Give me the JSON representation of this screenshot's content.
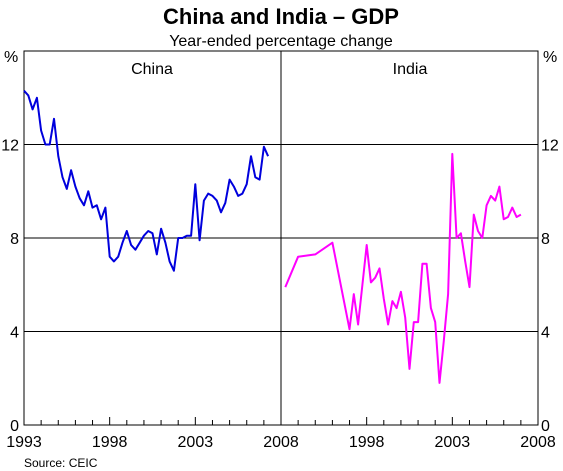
{
  "chart_data": {
    "type": "line",
    "title": "China and India – GDP",
    "subtitle": "Year-ended percentage change",
    "source": "Source: CEIC",
    "unit_left": "%",
    "unit_right": "%",
    "ylim": [
      0,
      16
    ],
    "yticks": [
      0,
      4,
      8,
      12
    ],
    "grid": true,
    "panels": [
      {
        "title": "China",
        "xlim": [
          1993,
          2008
        ],
        "xtick_labels": [
          "1993",
          "1998",
          "2003",
          "2008"
        ],
        "series": [
          {
            "color": "#0000dd",
            "x": [
              1993.0,
              1993.25,
              1993.5,
              1993.75,
              1994.0,
              1994.25,
              1994.5,
              1994.75,
              1995.0,
              1995.25,
              1995.5,
              1995.75,
              1996.0,
              1996.25,
              1996.5,
              1996.75,
              1997.0,
              1997.25,
              1997.5,
              1997.75,
              1998.0,
              1998.25,
              1998.5,
              1998.75,
              1999.0,
              1999.25,
              1999.5,
              1999.75,
              2000.0,
              2000.25,
              2000.5,
              2000.75,
              2001.0,
              2001.25,
              2001.5,
              2001.75,
              2002.0,
              2002.25,
              2002.5,
              2002.75,
              2003.0,
              2003.25,
              2003.5,
              2003.75,
              2004.0,
              2004.25,
              2004.5,
              2004.75,
              2005.0,
              2005.25,
              2005.5,
              2005.75,
              2006.0,
              2006.25,
              2006.5,
              2006.75,
              2007.0,
              2007.25
            ],
            "y": [
              14.3,
              14.1,
              13.5,
              14.0,
              12.6,
              12.0,
              12.0,
              13.1,
              11.5,
              10.6,
              10.1,
              10.9,
              10.2,
              9.7,
              9.4,
              10.0,
              9.3,
              9.4,
              8.8,
              9.3,
              7.2,
              7.0,
              7.2,
              7.8,
              8.3,
              7.7,
              7.5,
              7.8,
              8.1,
              8.3,
              8.2,
              7.3,
              8.4,
              7.8,
              7.0,
              6.6,
              8.0,
              8.0,
              8.1,
              8.1,
              10.3,
              7.9,
              9.6,
              9.9,
              9.8,
              9.6,
              9.1,
              9.5,
              10.5,
              10.2,
              9.8,
              9.9,
              10.3,
              11.5,
              10.6,
              10.5,
              11.9,
              11.5
            ]
          }
        ]
      },
      {
        "title": "India",
        "xlim": [
          1993,
          2008
        ],
        "xtick_labels": [
          "1998",
          "2003",
          "2008"
        ],
        "series": [
          {
            "color": "#ff00ff",
            "x": [
              1993.25,
              1994.0,
              1995.0,
              1996.0,
              1997.0,
              1997.25,
              1997.5,
              1997.75,
              1998.0,
              1998.25,
              1998.5,
              1998.75,
              1999.0,
              1999.25,
              1999.5,
              1999.75,
              2000.0,
              2000.25,
              2000.5,
              2000.75,
              2001.0,
              2001.25,
              2001.5,
              2001.75,
              2002.0,
              2002.25,
              2002.5,
              2002.75,
              2003.0,
              2003.25,
              2003.5,
              2003.75,
              2004.0,
              2004.25,
              2004.5,
              2004.75,
              2005.0,
              2005.25,
              2005.5,
              2005.75,
              2006.0,
              2006.25,
              2006.5,
              2006.75,
              2007.0
            ],
            "y": [
              5.9,
              7.2,
              7.3,
              7.8,
              4.1,
              5.6,
              4.3,
              6.0,
              7.7,
              6.1,
              6.3,
              6.7,
              5.4,
              4.3,
              5.3,
              5.0,
              5.7,
              4.6,
              2.4,
              4.4,
              4.4,
              6.9,
              6.9,
              5.0,
              4.4,
              1.8,
              3.6,
              5.6,
              11.6,
              8.0,
              8.2,
              7.0,
              5.9,
              9.0,
              8.3,
              8.0,
              9.4,
              9.8,
              9.6,
              10.2,
              8.8,
              8.9,
              9.3,
              8.9,
              9.0
            ]
          }
        ]
      }
    ]
  }
}
